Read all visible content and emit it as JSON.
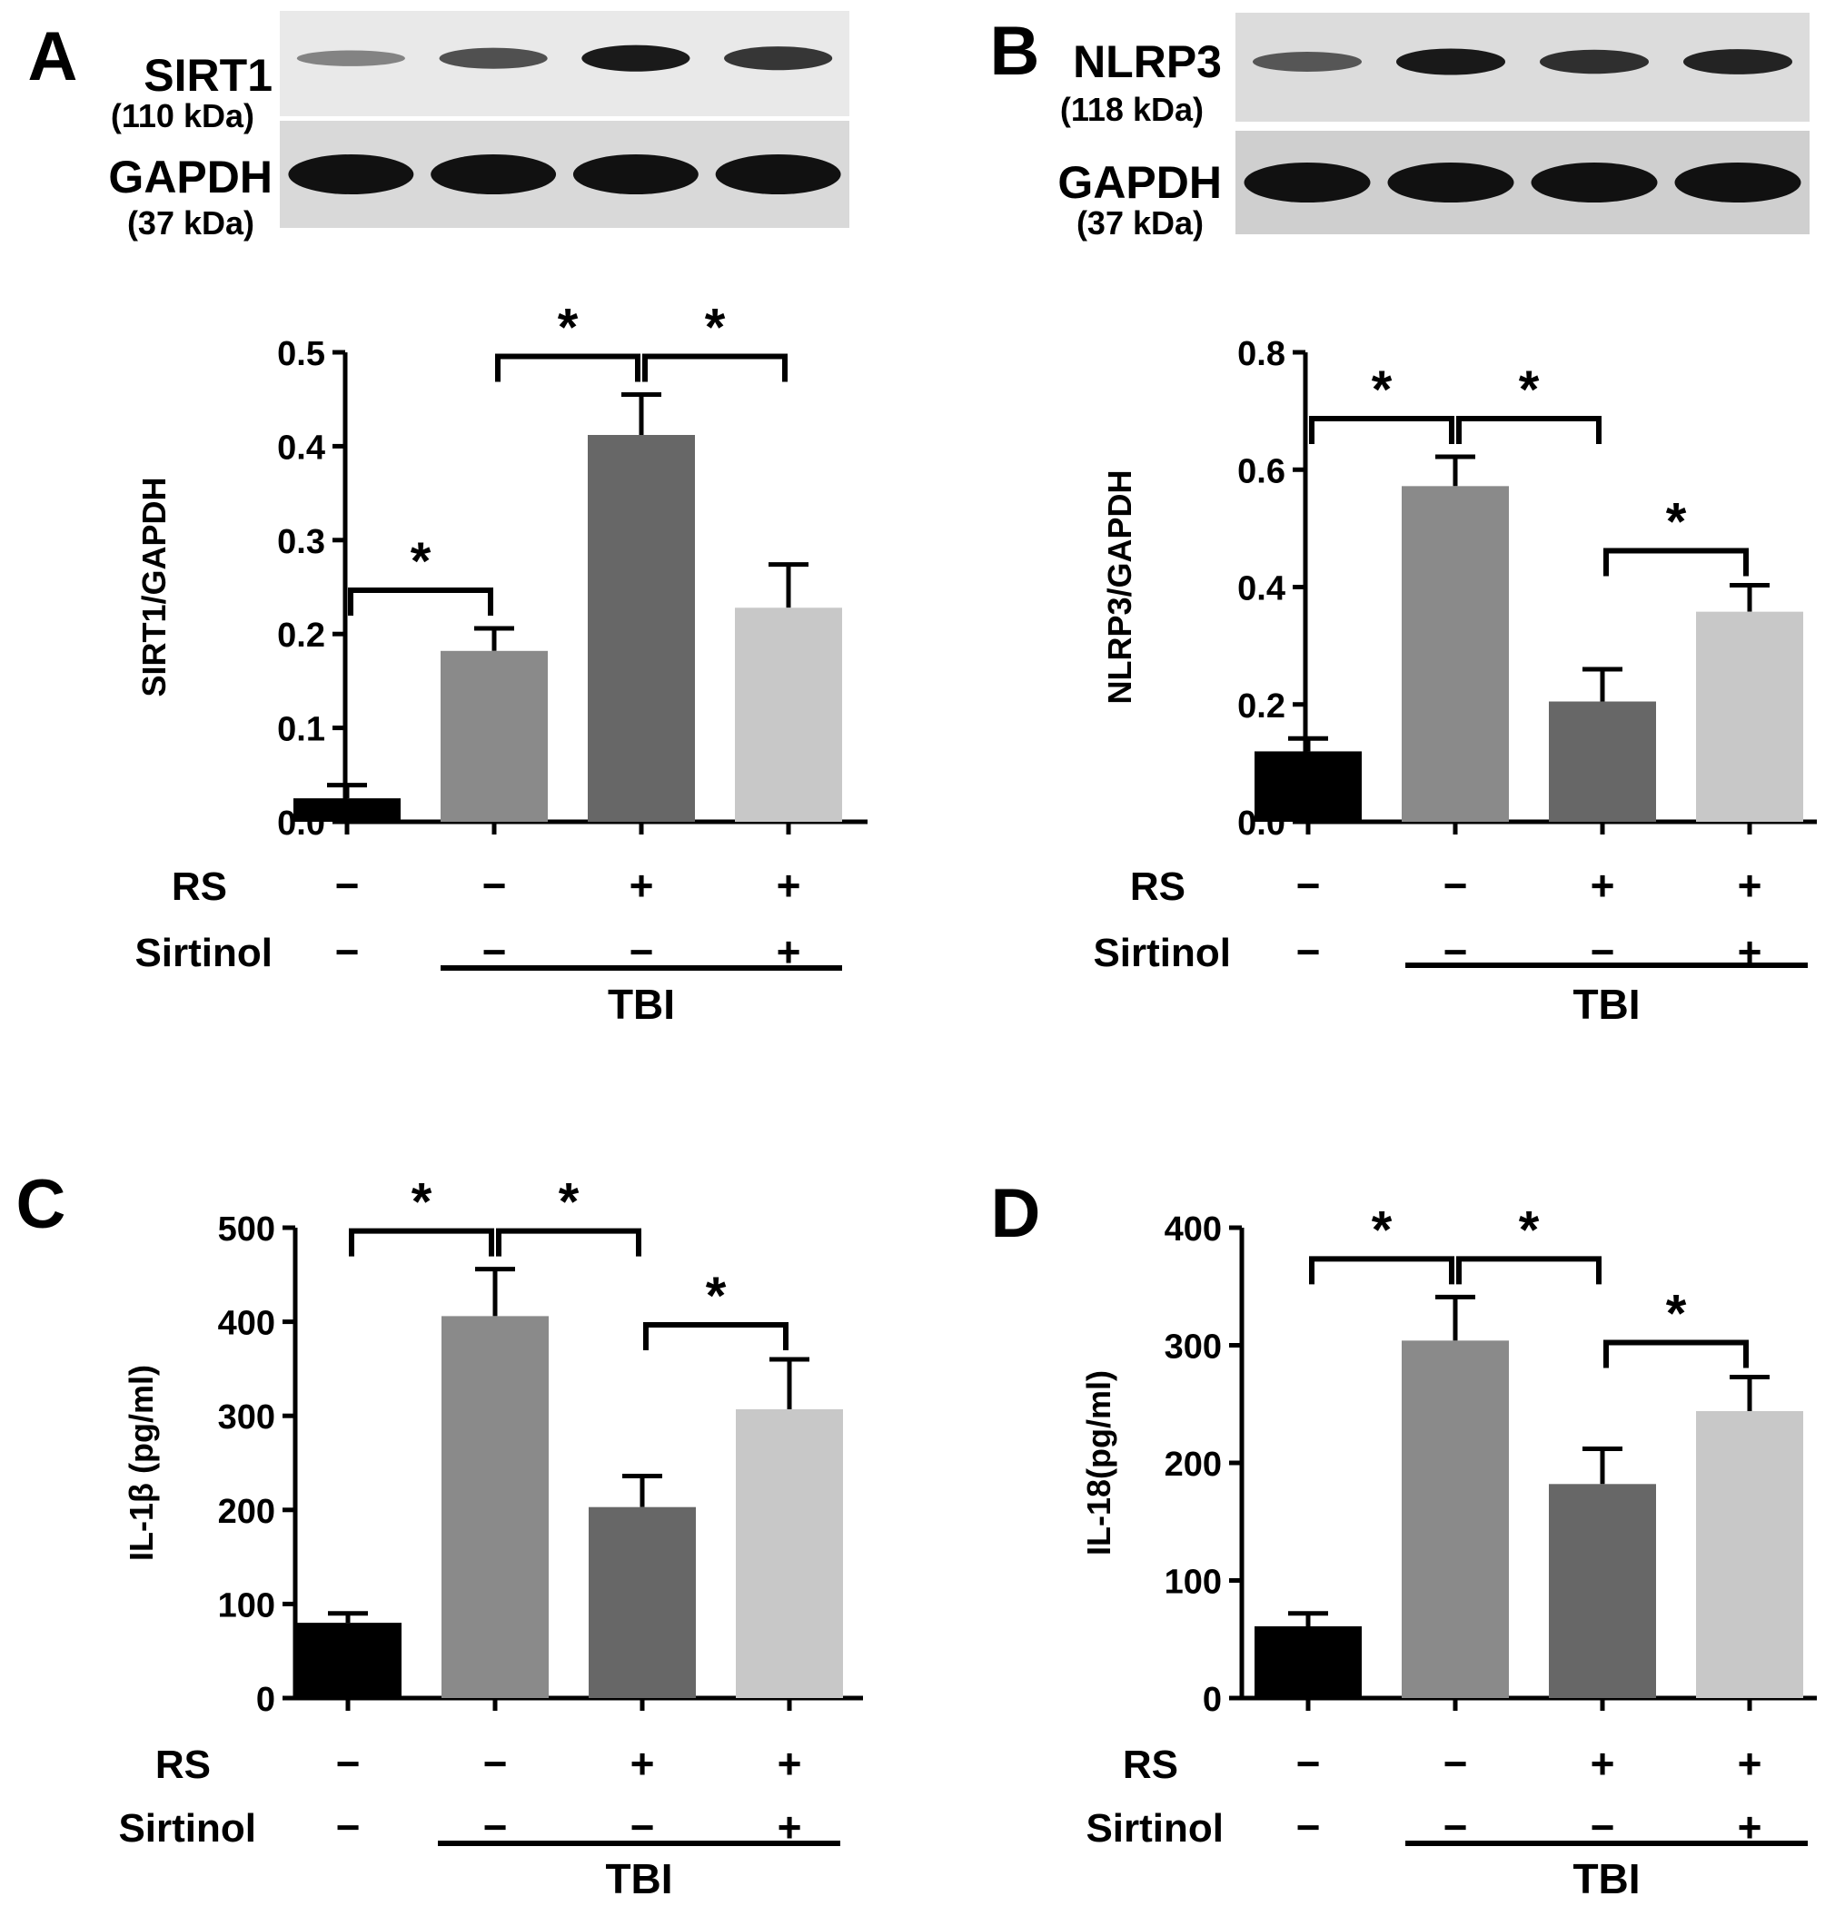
{
  "figure": {
    "rows": [
      "RS",
      "Sirtinol"
    ],
    "group_label": "TBI"
  },
  "chart_data": [
    {
      "panel": "A",
      "type": "bar",
      "ylabel": "SIRT1/GAPDH",
      "ylim": [
        0,
        0.5
      ],
      "yticks": [
        "0.0",
        "0.1",
        "0.2",
        "0.3",
        "0.4",
        "0.5"
      ],
      "values": [
        0.025,
        0.182,
        0.412,
        0.228
      ],
      "errors": [
        0.014,
        0.024,
        0.043,
        0.046
      ],
      "colors": [
        "#000000",
        "#8a8a8a",
        "#676767",
        "#c8c8c8"
      ],
      "rs": [
        "−",
        "−",
        "+",
        "+"
      ],
      "sirtinol": [
        "−",
        "−",
        "−",
        "+"
      ],
      "significance": [
        {
          "from": 0,
          "to": 1,
          "label": "*"
        },
        {
          "from": 1,
          "to": 2,
          "label": "*"
        },
        {
          "from": 2,
          "to": 3,
          "label": "*"
        }
      ],
      "blot": {
        "top": {
          "name": "SIRT1",
          "kda": "(110 kDa)",
          "intensity": [
            0.3,
            0.62,
            0.95,
            0.78
          ],
          "bg": "#e9e9e9"
        },
        "bottom": {
          "name": "GAPDH",
          "kda": "(37 kDa)",
          "intensity": [
            1,
            1,
            1,
            1
          ],
          "bg": "#d9d9d9"
        }
      }
    },
    {
      "panel": "B",
      "type": "bar",
      "ylabel": "NLRP3/GAPDH",
      "ylim": [
        0,
        0.8
      ],
      "yticks": [
        "0.0",
        "0.2",
        "0.4",
        "0.6",
        "0.8"
      ],
      "values": [
        0.12,
        0.572,
        0.205,
        0.358
      ],
      "errors": [
        0.022,
        0.05,
        0.055,
        0.045
      ],
      "colors": [
        "#000000",
        "#8a8a8a",
        "#676767",
        "#c8c8c8"
      ],
      "rs": [
        "−",
        "−",
        "+",
        "+"
      ],
      "sirtinol": [
        "−",
        "−",
        "−",
        "+"
      ],
      "significance": [
        {
          "from": 0,
          "to": 1,
          "label": "*"
        },
        {
          "from": 1,
          "to": 2,
          "label": "*"
        },
        {
          "from": 2,
          "to": 3,
          "label": "*"
        }
      ],
      "blot": {
        "top": {
          "name": "NLRP3",
          "kda": "(118 kDa)",
          "intensity": [
            0.55,
            0.95,
            0.8,
            0.88
          ],
          "bg": "#dcdcdc"
        },
        "bottom": {
          "name": "GAPDH",
          "kda": "(37 kDa)",
          "intensity": [
            1,
            1,
            1,
            1
          ],
          "bg": "#cfcfcf"
        }
      }
    },
    {
      "panel": "C",
      "type": "bar",
      "ylabel": "IL-1β (pg/ml)",
      "ylim": [
        0,
        500
      ],
      "yticks": [
        "0",
        "100",
        "200",
        "300",
        "400",
        "500"
      ],
      "values": [
        80,
        406,
        203,
        307
      ],
      "errors": [
        10,
        50,
        33,
        53
      ],
      "colors": [
        "#000000",
        "#8a8a8a",
        "#676767",
        "#c8c8c8"
      ],
      "rs": [
        "−",
        "−",
        "+",
        "+"
      ],
      "sirtinol": [
        "−",
        "−",
        "−",
        "+"
      ],
      "significance": [
        {
          "from": 0,
          "to": 1,
          "label": "*"
        },
        {
          "from": 1,
          "to": 2,
          "label": "*"
        },
        {
          "from": 2,
          "to": 3,
          "label": "*"
        }
      ]
    },
    {
      "panel": "D",
      "type": "bar",
      "ylabel": "IL-18(pg/ml)",
      "ylim": [
        0,
        400
      ],
      "yticks": [
        "0",
        "100",
        "200",
        "300",
        "400"
      ],
      "values": [
        61,
        304,
        182,
        244
      ],
      "errors": [
        11,
        37,
        30,
        29
      ],
      "colors": [
        "#000000",
        "#8a8a8a",
        "#676767",
        "#c8c8c8"
      ],
      "rs": [
        "−",
        "−",
        "+",
        "+"
      ],
      "sirtinol": [
        "−",
        "−",
        "−",
        "+"
      ],
      "significance": [
        {
          "from": 0,
          "to": 1,
          "label": "*"
        },
        {
          "from": 1,
          "to": 2,
          "label": "*"
        },
        {
          "from": 2,
          "to": 3,
          "label": "*"
        }
      ]
    }
  ]
}
